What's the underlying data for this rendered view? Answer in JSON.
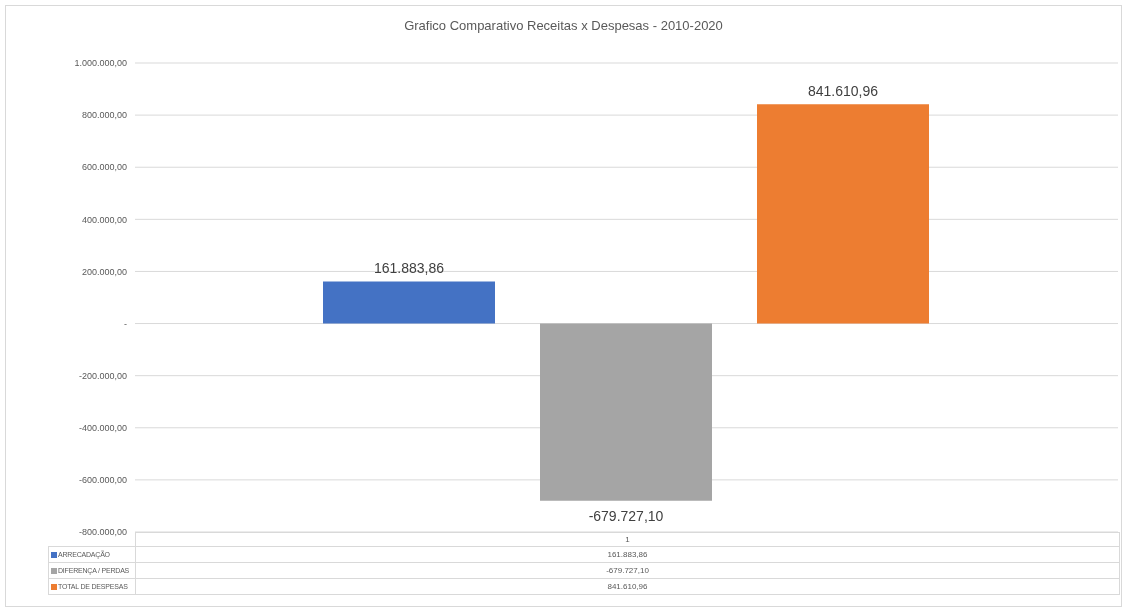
{
  "chart_data": {
    "type": "bar",
    "title": "Grafico Comparativo Receitas x Despesas - 2010-2020",
    "categories": [
      "1"
    ],
    "series": [
      {
        "name": "ARRECADAÇÃO",
        "color": "#4472c4",
        "values": [
          161883.86
        ],
        "value_labels": [
          "161.883,86"
        ]
      },
      {
        "name": "DIFERENÇA / PERDAS",
        "color": "#a5a5a5",
        "values": [
          -679727.1
        ],
        "value_labels": [
          "-679.727,10"
        ]
      },
      {
        "name": "TOTAL DE DESPESAS",
        "color": "#ed7d31",
        "values": [
          841610.96
        ],
        "value_labels": [
          "841.610,96"
        ]
      }
    ],
    "ylim": [
      -800000,
      1000000
    ],
    "yticks": [
      {
        "value": -800000,
        "label": "-800.000,00"
      },
      {
        "value": -600000,
        "label": "-600.000,00"
      },
      {
        "value": -400000,
        "label": "-400.000,00"
      },
      {
        "value": -200000,
        "label": "-200.000,00"
      },
      {
        "value": 0,
        "label": "-"
      },
      {
        "value": 200000,
        "label": "200.000,00"
      },
      {
        "value": 400000,
        "label": "400.000,00"
      },
      {
        "value": 600000,
        "label": "600.000,00"
      },
      {
        "value": 800000,
        "label": "800.000,00"
      },
      {
        "value": 1000000,
        "label": "1.000.000,00"
      }
    ],
    "grid": "y",
    "legend": "bottom"
  }
}
